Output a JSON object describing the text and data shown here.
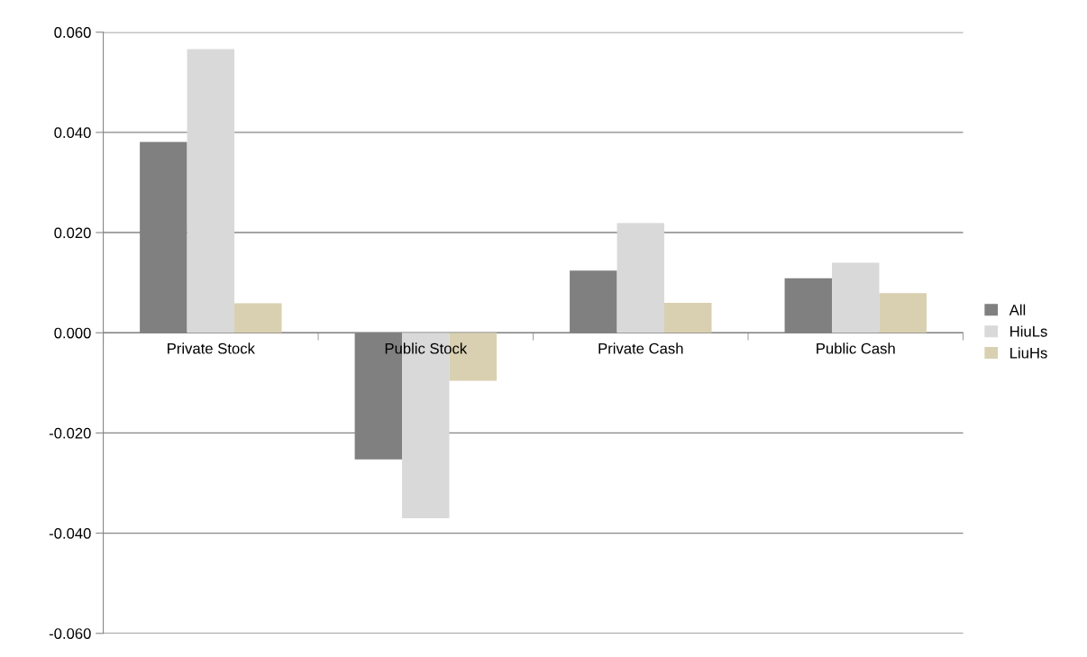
{
  "chart_data": {
    "type": "bar",
    "categories": [
      "Private Stock",
      "Public Stock",
      "Private Cash",
      "Public Cash"
    ],
    "series": [
      {
        "name": "All",
        "color": "#808080",
        "values": [
          0.0381,
          -0.0253,
          0.0124,
          0.0109
        ]
      },
      {
        "name": "HiuLs",
        "color": "#d9d9d9",
        "values": [
          0.0566,
          -0.037,
          0.0219,
          0.014
        ]
      },
      {
        "name": "LiuHs",
        "color": "#d8d0b0",
        "values": [
          0.0059,
          -0.0096,
          0.006,
          0.0079
        ]
      }
    ],
    "ylim": [
      -0.06,
      0.06
    ],
    "yticks": [
      {
        "value": -0.06,
        "label": "-0.060"
      },
      {
        "value": -0.04,
        "label": "-0.040"
      },
      {
        "value": -0.02,
        "label": "-0.020"
      },
      {
        "value": 0,
        "label": "0.000"
      },
      {
        "value": 0.02,
        "label": "0.020"
      },
      {
        "value": 0.04,
        "label": "0.040"
      },
      {
        "value": 0.06,
        "label": "0.060"
      }
    ],
    "grid": "y",
    "legend": "right"
  }
}
